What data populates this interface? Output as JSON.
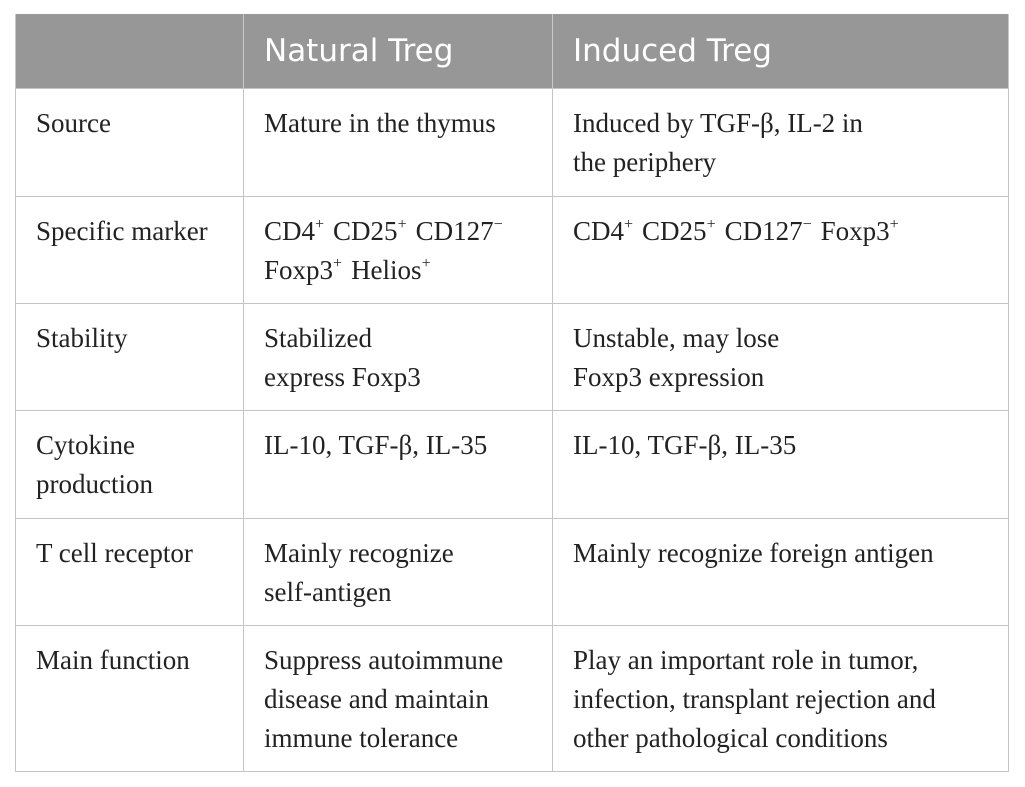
{
  "table": {
    "headers": [
      "",
      "Natural Treg",
      "Induced Treg"
    ],
    "rows": [
      {
        "label": [
          "Source"
        ],
        "natural": [
          "Mature in the thymus"
        ],
        "induced": [
          "Induced by TGF-β, IL-2 in",
          "the periphery"
        ]
      },
      {
        "label": [
          "Specific marker"
        ],
        "natural_markers": {
          "line1": [
            {
              "base": "CD4",
              "sup": "+"
            },
            {
              "base": "CD25",
              "sup": "+"
            },
            {
              "base": "CD127",
              "sup": "−"
            }
          ],
          "line2": [
            {
              "base": "Foxp3",
              "sup": "+"
            },
            {
              "base": "Helios",
              "sup": "+"
            }
          ]
        },
        "induced_markers": [
          {
            "base": "CD4",
            "sup": "+"
          },
          {
            "base": "CD25",
            "sup": "+"
          },
          {
            "base": "CD127",
            "sup": "−"
          },
          {
            "base": "Foxp3",
            "sup": "+"
          }
        ]
      },
      {
        "label": [
          "Stability"
        ],
        "natural": [
          "Stabilized",
          "express Foxp3"
        ],
        "induced": [
          "Unstable, may lose",
          "Foxp3 expression"
        ]
      },
      {
        "label": [
          "Cytokine",
          "production"
        ],
        "natural": [
          "IL-10, TGF-β, IL-35"
        ],
        "induced": [
          "IL-10, TGF-β, IL-35"
        ]
      },
      {
        "label": [
          "T cell receptor"
        ],
        "natural": [
          "Mainly recognize",
          "self-antigen"
        ],
        "induced": [
          "Mainly recognize foreign antigen"
        ]
      },
      {
        "label": [
          "Main function"
        ],
        "natural": [
          "Suppress autoimmune",
          "disease and maintain",
          "immune tolerance"
        ],
        "induced": [
          "Play an important role in tumor,",
          "infection, transplant rejection and",
          "other pathological conditions"
        ]
      }
    ]
  },
  "colors": {
    "header_bg": "#979797",
    "header_text": "#ffffff",
    "border": "#c4c4c4",
    "body_text": "#222222"
  }
}
